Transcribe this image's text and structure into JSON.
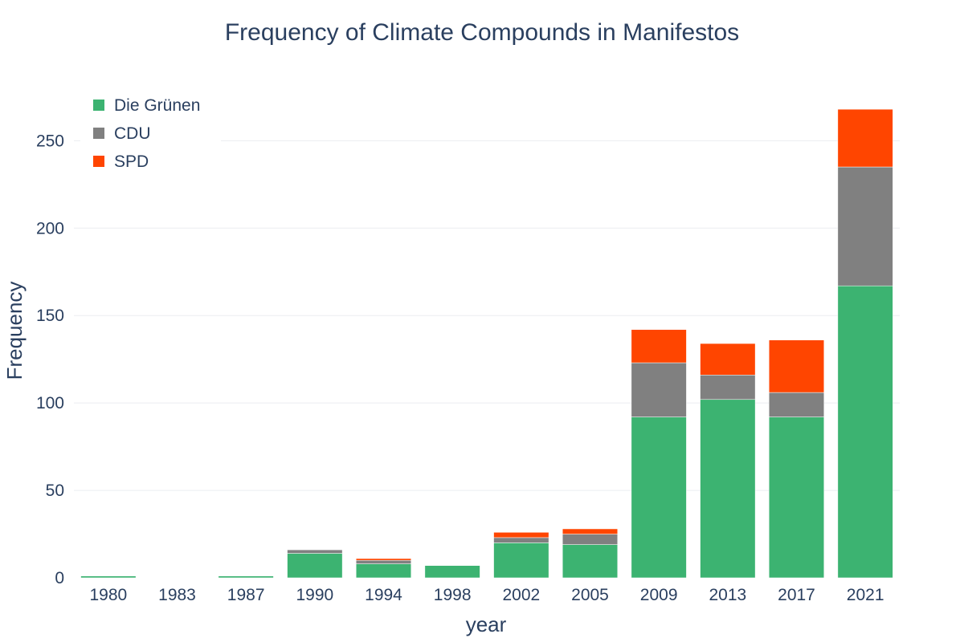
{
  "chart_data": {
    "type": "bar",
    "barmode": "stack",
    "title": "Frequency of Climate Compounds in Manifestos",
    "xlabel": "year",
    "ylabel": "Frequency",
    "categories": [
      "1980",
      "1983",
      "1987",
      "1990",
      "1994",
      "1998",
      "2002",
      "2005",
      "2009",
      "2013",
      "2017",
      "2021"
    ],
    "series": [
      {
        "name": "Die Grünen",
        "color": "#3cb371",
        "values": [
          1,
          0,
          1,
          14,
          8,
          7,
          20,
          19,
          92,
          102,
          92,
          167
        ]
      },
      {
        "name": "CDU",
        "color": "#808080",
        "values": [
          0,
          0,
          0,
          2,
          2,
          0,
          3,
          6,
          31,
          14,
          14,
          68
        ]
      },
      {
        "name": "SPD",
        "color": "#ff4500",
        "values": [
          0,
          0,
          0,
          0,
          1,
          0,
          3,
          3,
          19,
          18,
          30,
          33
        ]
      }
    ],
    "ylim": [
      0,
      280
    ],
    "yticks": [
      0,
      50,
      100,
      150,
      200,
      250
    ],
    "grid": true,
    "legend_position": "top-left"
  }
}
